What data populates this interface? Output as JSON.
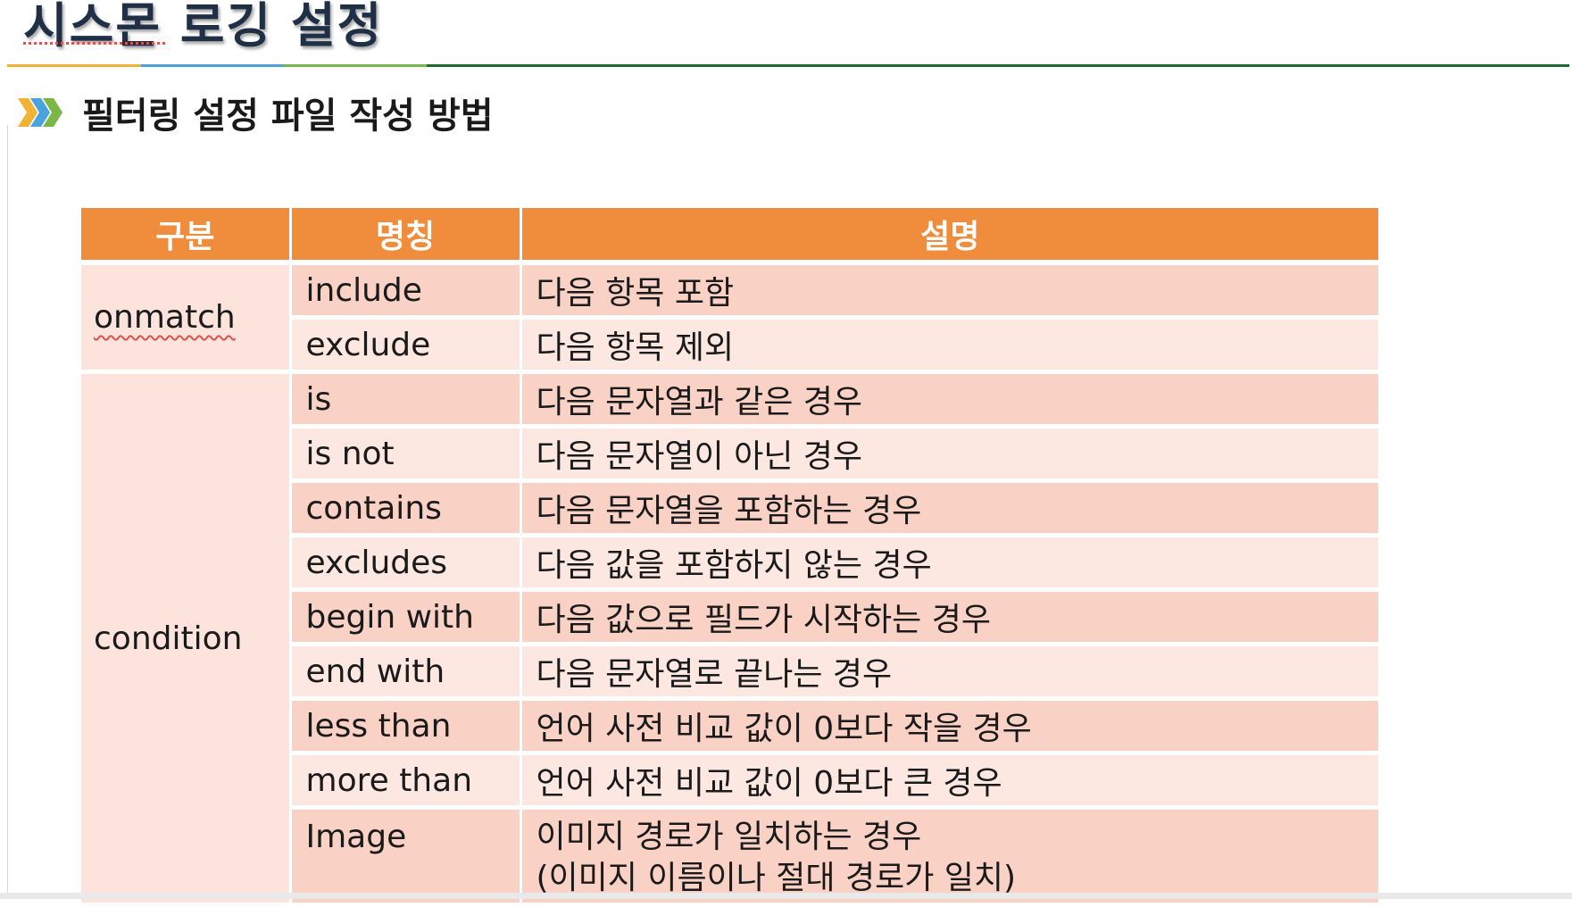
{
  "slide": {
    "title": "시스몬 로깅 설정",
    "subtitle": "필터링 설정 파일 작성 방법",
    "rule_colors": [
      "#f2b233",
      "#4aa3df",
      "#7ab648",
      "#1d6b2e"
    ]
  },
  "table": {
    "headers": {
      "category": "구분",
      "name": "명칭",
      "description": "설명"
    },
    "groups": [
      {
        "category": "onmatch",
        "rows": [
          {
            "name": "include",
            "desc": "다음 항목 포함"
          },
          {
            "name": "exclude",
            "desc": "다음 항목 제외"
          }
        ]
      },
      {
        "category": "condition",
        "rows": [
          {
            "name": "is",
            "desc": "다음 문자열과 같은 경우"
          },
          {
            "name": "is not",
            "desc": "다음 문자열이 아닌 경우"
          },
          {
            "name": "contains",
            "desc": "다음 문자열을 포함하는 경우"
          },
          {
            "name": "excludes",
            "desc": "다음 값을 포함하지 않는 경우"
          },
          {
            "name": "begin with",
            "desc": "다음 값으로 필드가 시작하는 경우"
          },
          {
            "name": "end with",
            "desc": "다음 문자열로 끝나는 경우"
          },
          {
            "name": "less than",
            "desc": "언어 사전 비교 값이 0보다 작을 경우"
          },
          {
            "name": "more than",
            "desc": "언어 사전 비교 값이 0보다 큰 경우"
          },
          {
            "name": "Image",
            "desc": "이미지 경로가 일치하는 경우",
            "desc2": "(이미지 이름이나 절대 경로가 일치)"
          }
        ]
      }
    ],
    "header_color": "#f08d3c",
    "row_color_dark": "#f9d2c5",
    "row_color_light": "#fce8e1"
  }
}
